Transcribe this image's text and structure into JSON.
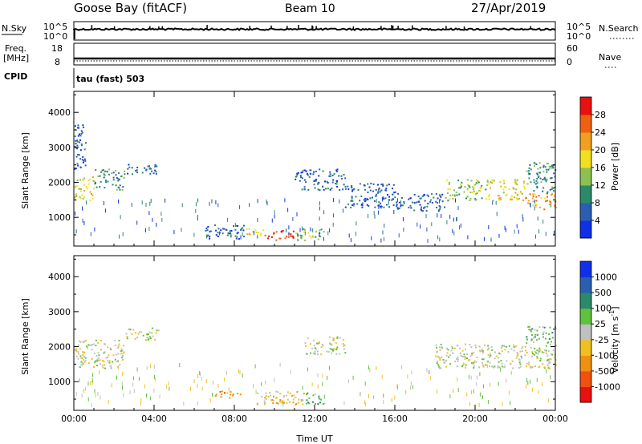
{
  "header": {
    "station": "Goose Bay (fitACF)",
    "beam": "Beam 10",
    "date": "27/Apr/2019"
  },
  "nsky_panel": {
    "left_label": "N.Sky",
    "left_ticks": [
      "10^5",
      "10^0"
    ],
    "right_ticks": [
      "10^5",
      "10^0"
    ],
    "right_label": "N.Search"
  },
  "freq_panel": {
    "left_label_top": "Freq.",
    "left_label_bottom": "[MHz]",
    "left_ticks": [
      "18",
      "8"
    ],
    "right_ticks": [
      "60",
      "0"
    ],
    "right_label": "Nave"
  },
  "cpid": {
    "label": "CPID",
    "text": "tau (fast) 503"
  },
  "chart_data": [
    {
      "type": "heatmap",
      "name": "power",
      "ylabel": "Slant Range [km]",
      "ylim": [
        180,
        4600
      ],
      "yticks": [
        "1000",
        "2000",
        "3000",
        "4000"
      ],
      "xlim": [
        0,
        24
      ],
      "xticks_hours": [
        0,
        4,
        8,
        12,
        16,
        20,
        24
      ],
      "colorbar": {
        "label": "Power [dB]",
        "levels": [
          "4",
          "8",
          "12",
          "16",
          "20",
          "24",
          "28"
        ],
        "colors": [
          "#1030e8",
          "#2a5fb0",
          "#2a8a6a",
          "#8cc050",
          "#f0e020",
          "#f0a020",
          "#f06010",
          "#e81010"
        ]
      },
      "regions": [
        {
          "t0": 0.0,
          "t1": 1.0,
          "r0": 1500,
          "r1": 2200,
          "level": 4
        },
        {
          "t0": 1.0,
          "t1": 2.5,
          "r0": 1800,
          "r1": 2400,
          "level": 2
        },
        {
          "t0": 2.5,
          "t1": 4.2,
          "r0": 2250,
          "r1": 2550,
          "level": 1
        },
        {
          "t0": 0.0,
          "t1": 0.6,
          "r0": 2400,
          "r1": 3800,
          "level": 1
        },
        {
          "t0": 6.5,
          "t1": 8.5,
          "r0": 400,
          "r1": 800,
          "level": 1
        },
        {
          "t0": 8.5,
          "t1": 9.5,
          "r0": 450,
          "r1": 700,
          "level": 4
        },
        {
          "t0": 9.5,
          "t1": 11.0,
          "r0": 350,
          "r1": 650,
          "level": 7
        },
        {
          "t0": 11.0,
          "t1": 12.5,
          "r0": 350,
          "r1": 700,
          "level": 3
        },
        {
          "t0": 11.0,
          "t1": 13.5,
          "r0": 1800,
          "r1": 2400,
          "level": 1
        },
        {
          "t0": 13.5,
          "t1": 16.0,
          "r0": 1300,
          "r1": 2000,
          "level": 1
        },
        {
          "t0": 16.0,
          "t1": 18.5,
          "r0": 1200,
          "r1": 1700,
          "level": 1
        },
        {
          "t0": 18.5,
          "t1": 20.5,
          "r0": 1500,
          "r1": 2100,
          "level": 3
        },
        {
          "t0": 20.5,
          "t1": 22.5,
          "r0": 1500,
          "r1": 2100,
          "level": 4
        },
        {
          "t0": 22.5,
          "t1": 24.0,
          "r0": 1250,
          "r1": 1700,
          "level": 5
        },
        {
          "t0": 22.5,
          "t1": 24.0,
          "r0": 1700,
          "r1": 2600,
          "level": 2
        }
      ]
    },
    {
      "type": "heatmap",
      "name": "velocity",
      "ylabel": "Slant Range [km]",
      "ylim": [
        180,
        4600
      ],
      "yticks": [
        "1000",
        "2000",
        "3000",
        "4000"
      ],
      "xlim": [
        0,
        24
      ],
      "xticks_hours": [
        0,
        4,
        8,
        12,
        16,
        20,
        24
      ],
      "xticks": [
        "00:00",
        "04:00",
        "08:00",
        "12:00",
        "16:00",
        "20:00",
        "00:00"
      ],
      "xlabel": "Time UT",
      "colorbar": {
        "label": "Velocity [m s",
        "label_sup": "-1",
        "label_end": "]",
        "levels": [
          "1000",
          "500",
          "100",
          "25",
          "-25",
          "-100",
          "-500",
          "-1000"
        ],
        "colors": [
          "#1030e8",
          "#2a5fb0",
          "#2a8a6a",
          "#60c040",
          "#c0c0c0",
          "#f0c020",
          "#f09010",
          "#f05010",
          "#e81010"
        ]
      },
      "regions": [
        {
          "t0": 0.0,
          "t1": 2.5,
          "r0": 1400,
          "r1": 2200,
          "level": 4
        },
        {
          "t0": 2.5,
          "t1": 4.2,
          "r0": 2200,
          "r1": 2550,
          "level": 4
        },
        {
          "t0": 7.0,
          "t1": 8.3,
          "r0": 550,
          "r1": 750,
          "level": 6
        },
        {
          "t0": 9.0,
          "t1": 11.5,
          "r0": 350,
          "r1": 750,
          "level": 5
        },
        {
          "t0": 11.5,
          "t1": 12.5,
          "r0": 350,
          "r1": 700,
          "level": 3
        },
        {
          "t0": 11.5,
          "t1": 13.5,
          "r0": 1800,
          "r1": 2300,
          "level": 4
        },
        {
          "t0": 18.0,
          "t1": 24.0,
          "r0": 1400,
          "r1": 2100,
          "level": 4
        },
        {
          "t0": 22.5,
          "t1": 24.0,
          "r0": 2100,
          "r1": 2600,
          "level": 3
        }
      ]
    }
  ]
}
